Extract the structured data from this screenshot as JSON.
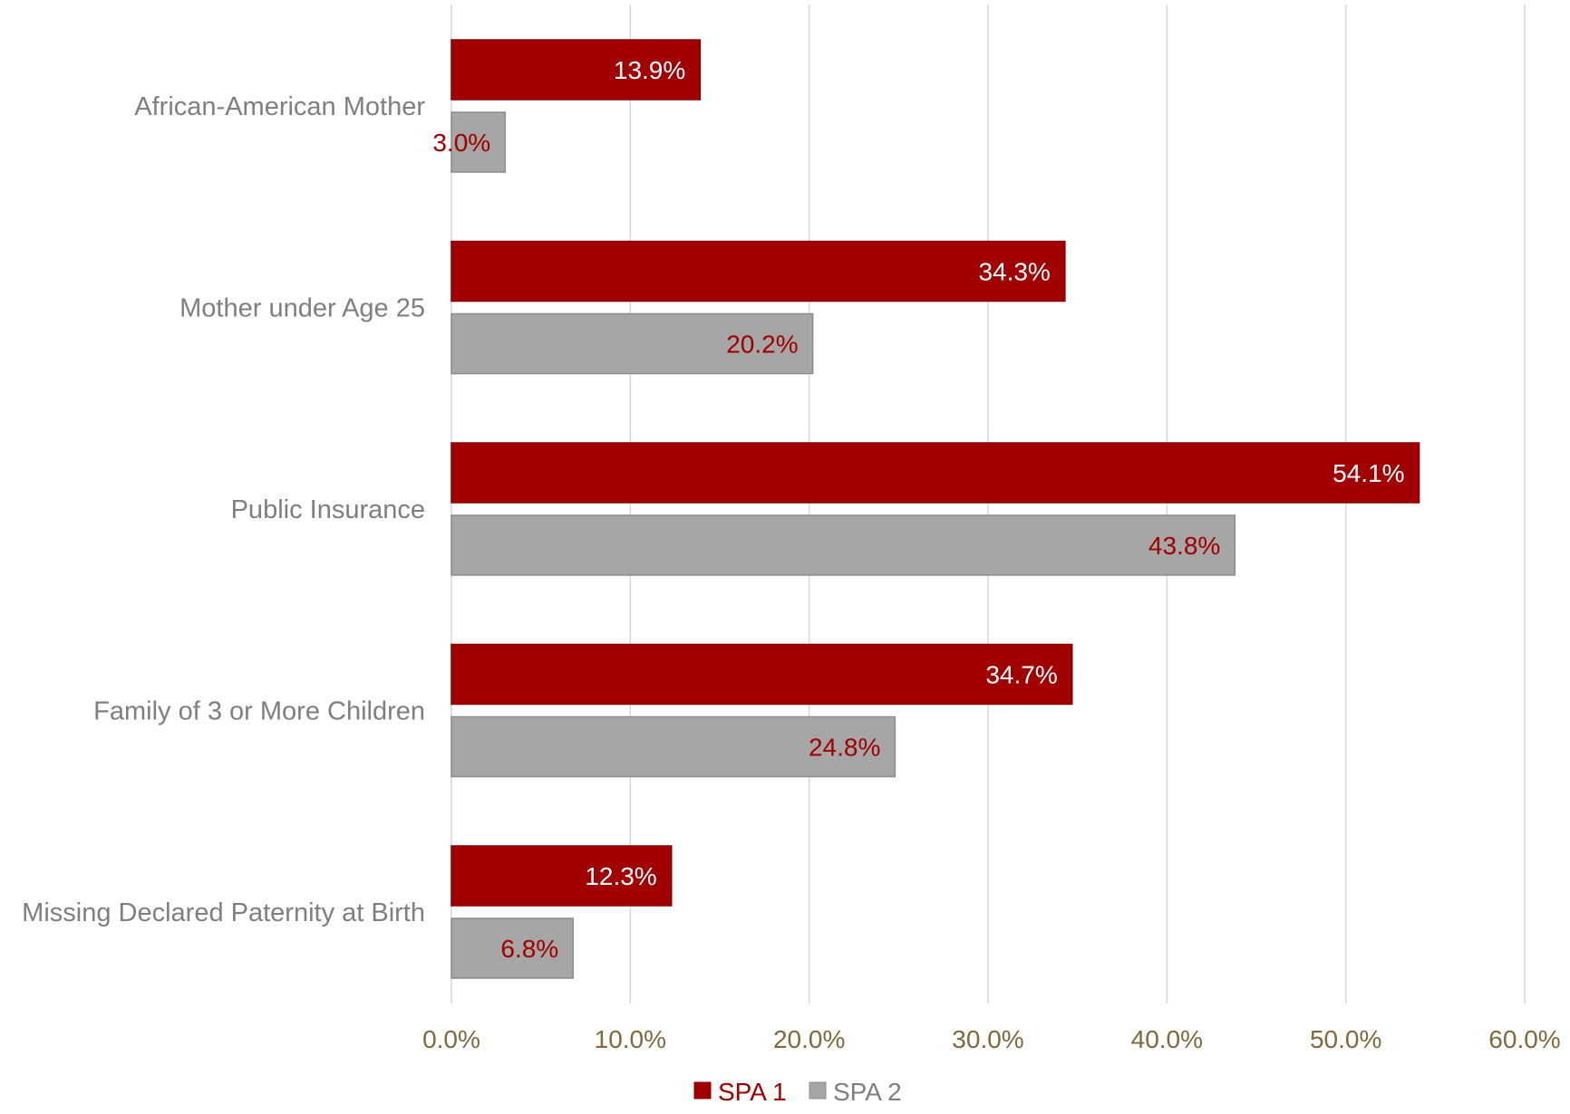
{
  "chart_data": {
    "type": "bar",
    "orientation": "horizontal",
    "categories": [
      "African-American Mother",
      "Mother under Age 25",
      "Public Insurance",
      "Family of 3 or More Children",
      "Missing Declared Paternity at Birth"
    ],
    "series": [
      {
        "name": "SPA 1",
        "color": "#a00000",
        "label_color": "#ffffff",
        "values": [
          13.9,
          34.3,
          54.1,
          34.7,
          12.3
        ]
      },
      {
        "name": "SPA 2",
        "color": "#a6a6a6",
        "label_color": "#a00000",
        "values": [
          3.0,
          20.2,
          43.8,
          24.8,
          6.8
        ]
      }
    ],
    "data_labels": [
      [
        "13.9%",
        "34.3%",
        "54.1%",
        "34.7%",
        "12.3%"
      ],
      [
        "3.0%",
        "20.2%",
        "43.8%",
        "24.8%",
        "6.8%"
      ]
    ],
    "xlim": [
      0,
      60
    ],
    "x_ticks": [
      0,
      10,
      20,
      30,
      40,
      50,
      60
    ],
    "x_tick_labels": [
      "0.0%",
      "10.0%",
      "20.0%",
      "30.0%",
      "40.0%",
      "50.0%",
      "60.0%"
    ],
    "tick_label_color": "#7f6a3f",
    "grid": true,
    "grid_color": "#d9d9d0",
    "legend": "bottom-center",
    "legend_entries": [
      "SPA 1",
      "SPA 2"
    ],
    "title": "",
    "xlabel": "",
    "ylabel": ""
  }
}
